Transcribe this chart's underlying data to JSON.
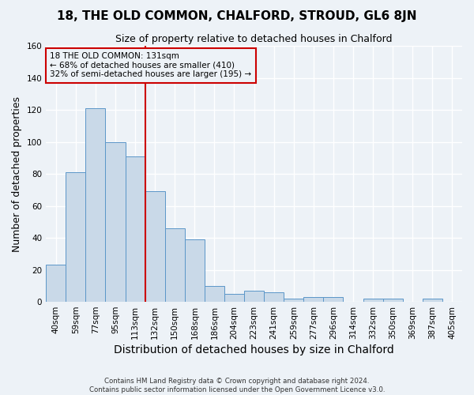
{
  "title": "18, THE OLD COMMON, CHALFORD, STROUD, GL6 8JN",
  "subtitle": "Size of property relative to detached houses in Chalford",
  "xlabel": "Distribution of detached houses by size in Chalford",
  "ylabel": "Number of detached properties",
  "footer_line1": "Contains HM Land Registry data © Crown copyright and database right 2024.",
  "footer_line2": "Contains public sector information licensed under the Open Government Licence v3.0.",
  "categories": [
    "40sqm",
    "59sqm",
    "77sqm",
    "95sqm",
    "113sqm",
    "132sqm",
    "150sqm",
    "168sqm",
    "186sqm",
    "204sqm",
    "223sqm",
    "241sqm",
    "259sqm",
    "277sqm",
    "296sqm",
    "314sqm",
    "332sqm",
    "350sqm",
    "369sqm",
    "387sqm",
    "405sqm"
  ],
  "values": [
    23,
    81,
    121,
    100,
    91,
    69,
    46,
    39,
    10,
    5,
    7,
    6,
    2,
    3,
    3,
    0,
    2,
    2,
    0,
    2,
    0
  ],
  "bar_color": "#c9d9e8",
  "bar_edge_color": "#5b96c8",
  "ylim": [
    0,
    160
  ],
  "yticks": [
    0,
    20,
    40,
    60,
    80,
    100,
    120,
    140,
    160
  ],
  "property_label": "18 THE OLD COMMON: 131sqm",
  "annotation_line1": "← 68% of detached houses are smaller (410)",
  "annotation_line2": "32% of semi-detached houses are larger (195) →",
  "vline_bar_index": 5,
  "vline_color": "#cc0000",
  "annotation_box_edgecolor": "#cc0000",
  "background_color": "#edf2f7",
  "plot_bg_color": "#edf2f7",
  "grid_color": "#c8d4e0",
  "title_fontsize": 11,
  "subtitle_fontsize": 9,
  "axis_label_fontsize": 9,
  "tick_fontsize": 7.5
}
